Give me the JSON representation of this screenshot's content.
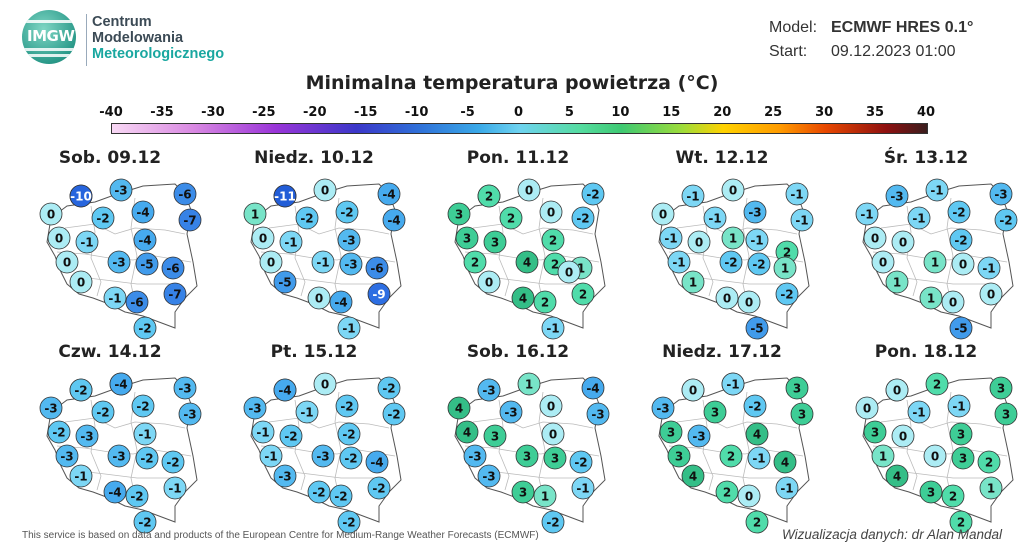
{
  "logo": {
    "abbr": "IMGW",
    "line1": "Centrum",
    "line2": "Modelowania",
    "line3": "Meteorologicznego"
  },
  "model": {
    "model_label": "Model:",
    "model_value": "ECMWF HRES 0.1°",
    "start_label": "Start:",
    "start_value": "09.12.2023 01:00"
  },
  "title": "Minimalna temperatura powietrza (°C)",
  "scale": {
    "labels": [
      "-40",
      "-35",
      "-30",
      "-25",
      "-20",
      "-15",
      "-10",
      "-5",
      "0",
      "5",
      "10",
      "15",
      "20",
      "25",
      "30",
      "35",
      "40"
    ],
    "min": -40,
    "max": 40
  },
  "days": [
    {
      "label": "Sob. 09.12",
      "values": [
        -1,
        -3,
        -6,
        0,
        -2,
        -4,
        -7,
        0,
        -1,
        -4,
        0,
        -3,
        -5,
        -6,
        0,
        -1,
        -6,
        -7,
        -2,
        -10
      ]
    },
    {
      "label": "Niedz. 10.12",
      "values": [
        0,
        0,
        -4,
        1,
        -2,
        -2,
        -4,
        0,
        -1,
        -3,
        0,
        -1,
        -3,
        -6,
        -5,
        0,
        -4,
        -9,
        -1,
        -11
      ]
    },
    {
      "label": "Pon. 11.12",
      "values": [
        2,
        0,
        -2,
        3,
        2,
        0,
        -2,
        3,
        3,
        2,
        2,
        4,
        2,
        1,
        0,
        4,
        2,
        2,
        0,
        -1,
        2
      ]
    },
    {
      "label": "Wt. 12.12",
      "values": [
        -1,
        0,
        -1,
        0,
        -1,
        -3,
        -1,
        -1,
        0,
        -1,
        1,
        2,
        -1,
        -2,
        -2,
        1,
        1,
        0,
        0,
        -2,
        -5
      ]
    },
    {
      "label": "Śr. 13.12",
      "values": [
        -3,
        -1,
        -3,
        -1,
        -1,
        -2,
        -2,
        0,
        0,
        -2,
        0,
        1,
        0,
        -1,
        1,
        1,
        0,
        0,
        -5
      ]
    },
    {
      "label": "Czw. 14.12",
      "values": [
        -3,
        0,
        -3,
        -3,
        -2,
        -2,
        -3,
        -2,
        -3,
        -1,
        -3,
        -3,
        -2,
        -2,
        -1,
        -4,
        -2,
        -1,
        -2,
        -2,
        -4
      ]
    },
    {
      "label": "Pt. 15.12",
      "values": [
        0,
        0,
        -2,
        -3,
        -1,
        -2,
        -2,
        -1,
        -2,
        -2,
        -1,
        -3,
        -2,
        -4,
        -3,
        -2,
        -2,
        -2,
        -2,
        -4
      ]
    },
    {
      "label": "Sob. 16.12",
      "values": [
        4,
        1,
        -4,
        4,
        -3,
        0,
        -3,
        4,
        3,
        0,
        -3,
        3,
        3,
        -2,
        -3,
        3,
        1,
        -1,
        -2,
        -3
      ]
    },
    {
      "label": "Niedz. 17.12",
      "values": [
        4,
        3,
        3,
        -3,
        3,
        -2,
        3,
        3,
        -3,
        4,
        3,
        2,
        -1,
        4,
        4,
        2,
        0,
        -1,
        2,
        0,
        -1
      ]
    },
    {
      "label": "Pon. 18.12",
      "values": [
        3,
        2,
        3,
        0,
        -1,
        -1,
        3,
        3,
        0,
        3,
        1,
        0,
        3,
        2,
        4,
        3,
        2,
        1,
        2,
        0
      ]
    }
  ],
  "footer": {
    "credit": "This service is based on data and products of the European Centre for Medium-Range Weather Forecasts (ECMWF)",
    "author": "Wizualizacja danych: dr Alan Mandal"
  }
}
